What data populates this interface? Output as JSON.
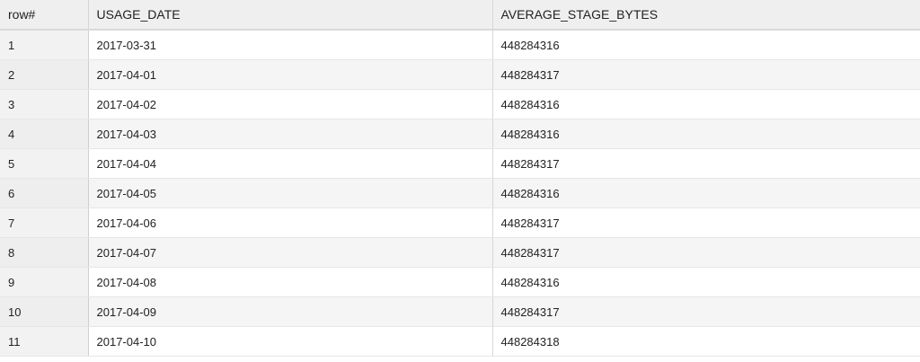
{
  "grid": {
    "columns": [
      "row#",
      "USAGE_DATE",
      "AVERAGE_STAGE_BYTES"
    ],
    "rows": [
      {
        "row": "1",
        "usage_date": "2017-03-31",
        "average_stage_bytes": "448284316"
      },
      {
        "row": "2",
        "usage_date": "2017-04-01",
        "average_stage_bytes": "448284317"
      },
      {
        "row": "3",
        "usage_date": "2017-04-02",
        "average_stage_bytes": "448284316"
      },
      {
        "row": "4",
        "usage_date": "2017-04-03",
        "average_stage_bytes": "448284316"
      },
      {
        "row": "5",
        "usage_date": "2017-04-04",
        "average_stage_bytes": "448284317"
      },
      {
        "row": "6",
        "usage_date": "2017-04-05",
        "average_stage_bytes": "448284316"
      },
      {
        "row": "7",
        "usage_date": "2017-04-06",
        "average_stage_bytes": "448284317"
      },
      {
        "row": "8",
        "usage_date": "2017-04-07",
        "average_stage_bytes": "448284317"
      },
      {
        "row": "9",
        "usage_date": "2017-04-08",
        "average_stage_bytes": "448284316"
      },
      {
        "row": "10",
        "usage_date": "2017-04-09",
        "average_stage_bytes": "448284317"
      },
      {
        "row": "11",
        "usage_date": "2017-04-10",
        "average_stage_bytes": "448284318"
      }
    ]
  }
}
